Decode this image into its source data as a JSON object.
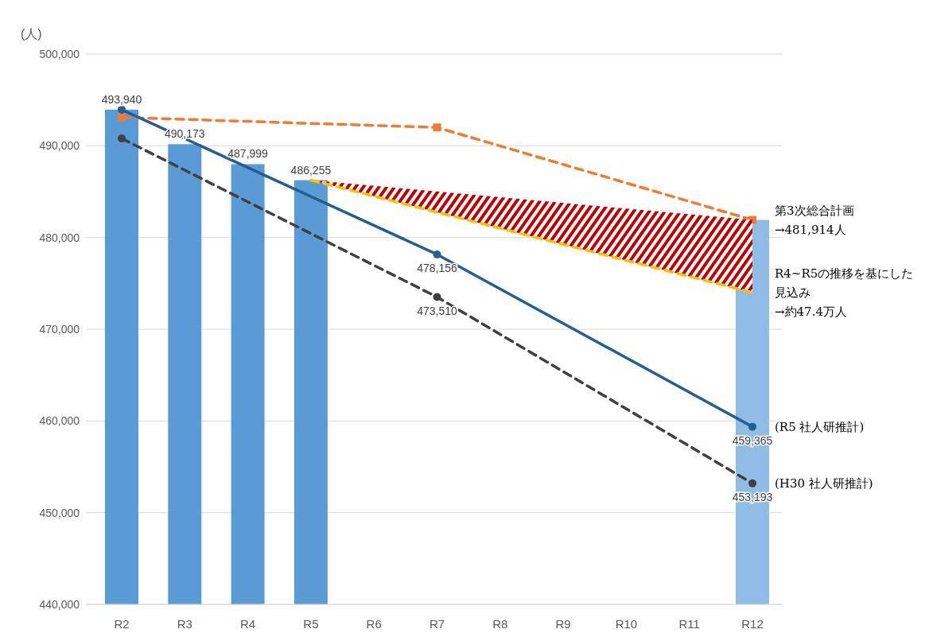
{
  "chart_data": {
    "type": "bar",
    "ylabel": "(人)",
    "categories": [
      "R2",
      "R3",
      "R4",
      "R5",
      "R6",
      "R7",
      "R8",
      "R9",
      "R10",
      "R11",
      "R12"
    ],
    "ylim": [
      440000,
      500000
    ],
    "yticks": [
      {
        "value": 440000,
        "label": "440,000"
      },
      {
        "value": 450000,
        "label": "450,000"
      },
      {
        "value": 460000,
        "label": "460,000"
      },
      {
        "value": 470000,
        "label": "470,000"
      },
      {
        "value": 480000,
        "label": "480,000"
      },
      {
        "value": 490000,
        "label": "490,000"
      },
      {
        "value": 500000,
        "label": "500,000"
      }
    ],
    "grid": "y",
    "series": [
      {
        "values": [
          493940,
          490173,
          487999,
          486255,
          null,
          null,
          null,
          null,
          null,
          null,
          481914
        ],
        "colors": [
          "#5b9bd5",
          "#5b9bd5",
          "#5b9bd5",
          "#5b9bd5",
          null,
          null,
          null,
          null,
          null,
          null,
          "#8fbde6"
        ],
        "value_labels": [
          "493,940",
          "490,173",
          "487,999",
          "486,255",
          null,
          null,
          null,
          null,
          null,
          null,
          null
        ]
      },
      {
        "type": "line",
        "name": "第3次総合計画\n→481,914人",
        "color": "#ed7d31",
        "line_style": "dashed",
        "marker": "square",
        "values": [
          493100,
          null,
          null,
          null,
          null,
          492000,
          null,
          null,
          null,
          null,
          481914
        ]
      },
      {
        "type": "line",
        "name": "R4~R5の推移を基にした見込み\n→約47.4万人",
        "color": "#ffc000",
        "line_style": "dashed",
        "marker": "none",
        "values": [
          null,
          null,
          null,
          486255,
          null,
          null,
          null,
          null,
          null,
          null,
          474000
        ],
        "lower": [
          null,
          null,
          null,
          486255,
          null,
          null,
          null,
          null,
          null,
          null,
          474000
        ],
        "upper": [
          null,
          null,
          null,
          486255,
          null,
          null,
          null,
          null,
          null,
          null,
          481914
        ]
      },
      {
        "type": "line",
        "name": "(R5 社人研推計)",
        "color": "#255e91",
        "line_style": "solid",
        "marker": "circle",
        "values": [
          493940,
          null,
          null,
          null,
          null,
          478156,
          null,
          null,
          null,
          null,
          459365
        ],
        "value_labels": [
          null,
          null,
          null,
          null,
          null,
          "478,156",
          null,
          null,
          null,
          null,
          "459,365"
        ]
      },
      {
        "type": "line",
        "name": "(H30 社人研推計)",
        "color": "#404040",
        "line_style": "dashed",
        "marker": "circle",
        "values": [
          490800,
          null,
          null,
          null,
          null,
          473510,
          null,
          null,
          null,
          null,
          453193
        ],
        "value_labels": [
          null,
          null,
          null,
          null,
          null,
          "473,510",
          null,
          null,
          null,
          null,
          "453,193"
        ]
      }
    ]
  }
}
